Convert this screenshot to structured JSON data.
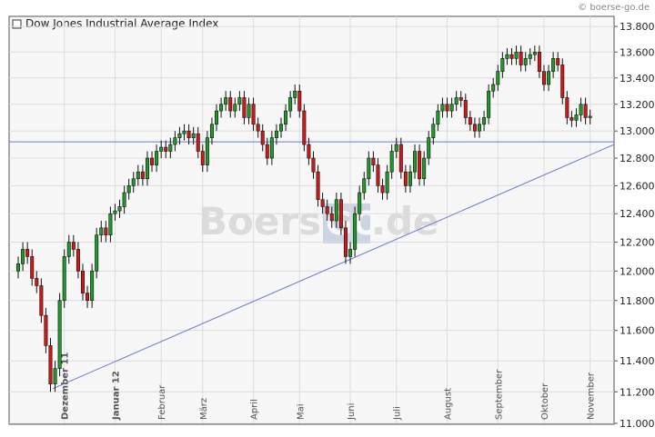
{
  "chart_data": {
    "type": "candlestick",
    "title": "Dow Jones Industrial Average Index",
    "copyright": "© boerse-go.de",
    "watermark": [
      "Boerse",
      "GO",
      ".de"
    ],
    "categories": [
      null,
      null,
      null,
      null,
      null,
      null,
      null,
      null,
      null,
      null,
      "Dezember 11",
      null,
      null,
      null,
      null,
      null,
      null,
      null,
      null,
      null,
      null,
      "Januar 12",
      null,
      null,
      null,
      null,
      null,
      null,
      null,
      null,
      null,
      "Februar",
      null,
      null,
      null,
      null,
      null,
      null,
      null,
      null,
      "März",
      null,
      null,
      null,
      null,
      null,
      null,
      null,
      null,
      null,
      null,
      "April",
      null,
      null,
      null,
      null,
      null,
      null,
      null,
      null,
      null,
      "Mai",
      null,
      null,
      null,
      null,
      null,
      null,
      null,
      null,
      null,
      null,
      "Juni",
      null,
      null,
      null,
      null,
      null,
      null,
      null,
      null,
      null,
      "Juli",
      null,
      null,
      null,
      null,
      null,
      null,
      null,
      null,
      null,
      null,
      "August",
      null,
      null,
      null,
      null,
      null,
      null,
      null,
      null,
      null,
      null,
      "September",
      null,
      null,
      null,
      null,
      null,
      null,
      null,
      null,
      null,
      "Oktober",
      null,
      null,
      null,
      null,
      null,
      null,
      null,
      null,
      null,
      "November"
    ],
    "open": [
      12000,
      12050,
      12150,
      12100,
      11950,
      11900,
      11700,
      11500,
      11250,
      11350,
      11800,
      12100,
      12200,
      12150,
      12000,
      11850,
      11800,
      12000,
      12250,
      12300,
      12250,
      12400,
      12420,
      12450,
      12550,
      12600,
      12650,
      12700,
      12650,
      12800,
      12750,
      12850,
      12880,
      12850,
      12900,
      12950,
      12980,
      13000,
      12950,
      12980,
      12850,
      12750,
      12950,
      13050,
      13150,
      13200,
      13250,
      13150,
      13200,
      13250,
      13100,
      13200,
      13050,
      13000,
      12900,
      12800,
      12950,
      13000,
      13050,
      13150,
      13250,
      13300,
      13150,
      12900,
      12800,
      12700,
      12500,
      12450,
      12400,
      12350,
      12500,
      12300,
      12100,
      12150,
      12400,
      12550,
      12650,
      12800,
      12750,
      12600,
      12550,
      12700,
      12850,
      12900,
      12700,
      12600,
      12700,
      12850,
      12650,
      12800,
      12950,
      13050,
      13150,
      13200,
      13150,
      13200,
      13250,
      13230,
      13100,
      13050,
      13000,
      13050,
      13100,
      13300,
      13350,
      13450,
      13550,
      13580,
      13550,
      13600,
      13500,
      13550,
      13580,
      13600,
      13450,
      13350,
      13450,
      13550,
      13500,
      13250,
      13100,
      13080,
      13120,
      13200,
      13100
    ],
    "high": [
      12100,
      12200,
      12200,
      12150,
      12000,
      11950,
      11750,
      11550,
      11400,
      11850,
      12150,
      12250,
      12250,
      12200,
      12050,
      11900,
      12050,
      12300,
      12350,
      12350,
      12450,
      12470,
      12500,
      12600,
      12650,
      12700,
      12750,
      12750,
      12850,
      12850,
      12900,
      12930,
      12930,
      12950,
      13000,
      13030,
      13050,
      13050,
      13030,
      13030,
      12900,
      13000,
      13100,
      13200,
      13250,
      13300,
      13300,
      13250,
      13300,
      13300,
      13250,
      13250,
      13100,
      13050,
      12950,
      13000,
      13050,
      13100,
      13200,
      13300,
      13350,
      13350,
      13200,
      12950,
      12850,
      12750,
      12550,
      12500,
      12450,
      12550,
      12550,
      12350,
      12200,
      12450,
      12600,
      12700,
      12850,
      12850,
      12800,
      12650,
      12750,
      12900,
      12950,
      12950,
      12750,
      12750,
      12900,
      12900,
      12850,
      13000,
      13100,
      13200,
      13250,
      13250,
      13250,
      13300,
      13300,
      13280,
      13150,
      13100,
      13100,
      13150,
      13350,
      13400,
      13500,
      13600,
      13630,
      13630,
      13650,
      13650,
      13600,
      13630,
      13650,
      13650,
      13500,
      13500,
      13600,
      13600,
      13550,
      13300,
      13150,
      13170,
      13250,
      13250,
      13160
    ],
    "low": [
      11950,
      12000,
      12050,
      11900,
      11850,
      11650,
      11450,
      11200,
      11200,
      11300,
      11750,
      12050,
      12100,
      11950,
      11800,
      11750,
      11750,
      11950,
      12200,
      12200,
      12200,
      12350,
      12370,
      12400,
      12500,
      12550,
      12600,
      12600,
      12600,
      12700,
      12700,
      12800,
      12800,
      12800,
      12850,
      12900,
      12930,
      12900,
      12900,
      12800,
      12700,
      12700,
      12900,
      13000,
      13100,
      13150,
      13100,
      13100,
      13150,
      13050,
      13050,
      13000,
      12950,
      12850,
      12750,
      12750,
      12900,
      12950,
      13000,
      13100,
      13200,
      13100,
      12850,
      12750,
      12650,
      12450,
      12400,
      12350,
      12300,
      12300,
      12250,
      12050,
      12050,
      12100,
      12350,
      12500,
      12600,
      12700,
      12550,
      12500,
      12500,
      12650,
      12800,
      12650,
      12550,
      12550,
      12650,
      12600,
      12600,
      12750,
      12900,
      13000,
      13100,
      13100,
      13100,
      13150,
      13180,
      13050,
      13000,
      12950,
      12950,
      13000,
      13050,
      13250,
      13300,
      13400,
      13500,
      13500,
      13500,
      13450,
      13450,
      13500,
      13530,
      13400,
      13300,
      13300,
      13400,
      13450,
      13200,
      13050,
      13030,
      13030,
      13070,
      13050,
      13050
    ],
    "close": [
      12050,
      12150,
      12100,
      11950,
      11900,
      11700,
      11500,
      11250,
      11350,
      11800,
      12100,
      12200,
      12150,
      12000,
      11850,
      11800,
      12000,
      12250,
      12300,
      12250,
      12400,
      12420,
      12450,
      12550,
      12600,
      12650,
      12700,
      12650,
      12800,
      12750,
      12850,
      12880,
      12850,
      12900,
      12950,
      12980,
      13000,
      12950,
      12980,
      12850,
      12750,
      12950,
      13050,
      13150,
      13200,
      13250,
      13150,
      13200,
      13250,
      13100,
      13200,
      13050,
      13000,
      12900,
      12800,
      12950,
      13000,
      13050,
      13150,
      13250,
      13300,
      13150,
      12900,
      12800,
      12700,
      12500,
      12450,
      12400,
      12350,
      12500,
      12300,
      12100,
      12150,
      12400,
      12550,
      12650,
      12800,
      12750,
      12600,
      12550,
      12700,
      12850,
      12900,
      12700,
      12600,
      12700,
      12850,
      12650,
      12800,
      12950,
      13050,
      13150,
      13200,
      13150,
      13200,
      13250,
      13230,
      13100,
      13050,
      13000,
      13050,
      13100,
      13300,
      13350,
      13450,
      13550,
      13580,
      13550,
      13600,
      13500,
      13550,
      13580,
      13600,
      13450,
      13350,
      13450,
      13550,
      13500,
      13250,
      13100,
      13080,
      13120,
      13200,
      13100,
      13110
    ],
    "up_color": "#1f9a2a",
    "down_color": "#d01818",
    "hline": 12920,
    "trendline": [
      11220,
      12900
    ],
    "log_scale": true,
    "grid": true,
    "ylim": [
      11000,
      13880
    ],
    "yticks": [
      {
        "value": 11000,
        "label": "11.000"
      },
      {
        "value": 11200,
        "label": "11.200"
      },
      {
        "value": 11400,
        "label": "11.400"
      },
      {
        "value": 11600,
        "label": "11.600"
      },
      {
        "value": 11800,
        "label": "11.800"
      },
      {
        "value": 12000,
        "label": "12.000"
      },
      {
        "value": 12200,
        "label": "12.200"
      },
      {
        "value": 12400,
        "label": "12.400"
      },
      {
        "value": 12600,
        "label": "12.600"
      },
      {
        "value": 12800,
        "label": "12.800"
      },
      {
        "value": 13000,
        "label": "13.000"
      },
      {
        "value": 13200,
        "label": "13.200"
      },
      {
        "value": 13400,
        "label": "13.400"
      },
      {
        "value": 13600,
        "label": "13.600"
      },
      {
        "value": 13800,
        "label": "13.800"
      }
    ]
  }
}
